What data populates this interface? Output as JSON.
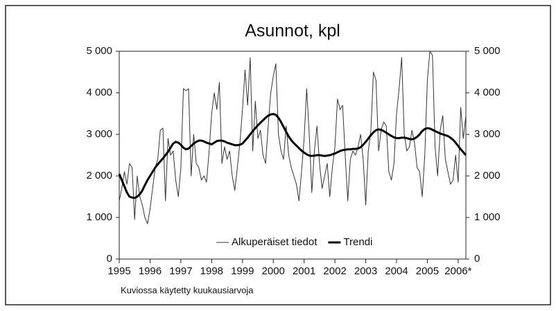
{
  "chart_data": {
    "type": "line",
    "title": "Asunnot, kpl",
    "footnote": "Kuviossa käytetty kuukausiarvoja",
    "x": [
      1995,
      1995.083,
      1995.167,
      1995.25,
      1995.333,
      1995.417,
      1995.5,
      1995.583,
      1995.667,
      1995.75,
      1995.833,
      1995.917,
      1996,
      1996.083,
      1996.167,
      1996.25,
      1996.333,
      1996.417,
      1996.5,
      1996.583,
      1996.667,
      1996.75,
      1996.833,
      1996.917,
      1997,
      1997.083,
      1997.167,
      1997.25,
      1997.333,
      1997.417,
      1997.5,
      1997.583,
      1997.667,
      1997.75,
      1997.833,
      1997.917,
      1998,
      1998.083,
      1998.167,
      1998.25,
      1998.333,
      1998.417,
      1998.5,
      1998.583,
      1998.667,
      1998.75,
      1998.833,
      1998.917,
      1999,
      1999.083,
      1999.167,
      1999.25,
      1999.333,
      1999.417,
      1999.5,
      1999.583,
      1999.667,
      1999.75,
      1999.833,
      1999.917,
      2000,
      2000.083,
      2000.167,
      2000.25,
      2000.333,
      2000.417,
      2000.5,
      2000.583,
      2000.667,
      2000.75,
      2000.833,
      2000.917,
      2001,
      2001.083,
      2001.167,
      2001.25,
      2001.333,
      2001.417,
      2001.5,
      2001.583,
      2001.667,
      2001.75,
      2001.833,
      2001.917,
      2002,
      2002.083,
      2002.167,
      2002.25,
      2002.333,
      2002.417,
      2002.5,
      2002.583,
      2002.667,
      2002.75,
      2002.833,
      2002.917,
      2003,
      2003.083,
      2003.167,
      2003.25,
      2003.333,
      2003.417,
      2003.5,
      2003.583,
      2003.667,
      2003.75,
      2003.833,
      2003.917,
      2004,
      2004.083,
      2004.167,
      2004.25,
      2004.333,
      2004.417,
      2004.5,
      2004.583,
      2004.667,
      2004.75,
      2004.833,
      2004.917,
      2005,
      2005.083,
      2005.167,
      2005.25,
      2005.333,
      2005.417,
      2005.5,
      2005.583,
      2005.667,
      2005.75,
      2005.833,
      2005.917,
      2006,
      2006.083,
      2006.167,
      2006.25
    ],
    "series": [
      {
        "name": "Alkuperäiset tiedot",
        "color": "#333333",
        "width": 1,
        "values": [
          1400,
          1700,
          2100,
          1800,
          2300,
          2200,
          950,
          2000,
          1500,
          1300,
          1000,
          850,
          1200,
          1700,
          2200,
          2400,
          3100,
          3150,
          1400,
          2900,
          2500,
          2600,
          1900,
          1500,
          2200,
          4100,
          4050,
          4100,
          2000,
          3000,
          2300,
          2200,
          1900,
          2000,
          1850,
          2600,
          3500,
          4000,
          3600,
          4250,
          2300,
          2700,
          2400,
          2600,
          2000,
          1650,
          2200,
          2800,
          3600,
          4550,
          3700,
          4850,
          2600,
          3800,
          2900,
          3100,
          2500,
          2300,
          3200,
          4000,
          4400,
          4700,
          3000,
          2600,
          2400,
          3200,
          2500,
          2200,
          2000,
          1800,
          1400,
          2100,
          2900,
          4100,
          3000,
          1600,
          2600,
          3200,
          2300,
          1700,
          2000,
          2300,
          1500,
          2200,
          2700,
          3850,
          3600,
          3700,
          2500,
          1400,
          2400,
          2600,
          2500,
          2700,
          3000,
          2400,
          1300,
          2600,
          3100,
          4500,
          4300,
          2600,
          3100,
          3300,
          3200,
          2100,
          1900,
          2300,
          3500,
          4100,
          4850,
          3000,
          2600,
          2700,
          3100,
          2800,
          2200,
          2100,
          1500,
          2500,
          4300,
          5000,
          4900,
          2700,
          2000,
          3100,
          3450,
          2400,
          2100,
          1800,
          1900,
          2500,
          1850,
          3650,
          2900,
          3450
        ]
      },
      {
        "name": "Trendi",
        "color": "#000000",
        "width": 3,
        "values": [
          2050,
          1900,
          1750,
          1600,
          1500,
          1480,
          1470,
          1500,
          1560,
          1650,
          1780,
          1900,
          2000,
          2100,
          2200,
          2280,
          2350,
          2420,
          2500,
          2580,
          2680,
          2780,
          2820,
          2800,
          2750,
          2680,
          2640,
          2660,
          2720,
          2780,
          2820,
          2850,
          2850,
          2830,
          2800,
          2780,
          2760,
          2800,
          2840,
          2850,
          2850,
          2830,
          2800,
          2780,
          2760,
          2740,
          2740,
          2750,
          2780,
          2850,
          2920,
          3000,
          3080,
          3150,
          3220,
          3280,
          3340,
          3400,
          3450,
          3480,
          3490,
          3470,
          3400,
          3300,
          3180,
          3060,
          2950,
          2860,
          2790,
          2730,
          2670,
          2610,
          2560,
          2520,
          2490,
          2480,
          2490,
          2500,
          2500,
          2490,
          2480,
          2490,
          2500,
          2520,
          2540,
          2570,
          2600,
          2620,
          2630,
          2640,
          2640,
          2650,
          2650,
          2660,
          2690,
          2750,
          2820,
          2900,
          2980,
          3050,
          3100,
          3120,
          3110,
          3080,
          3040,
          3000,
          2960,
          2930,
          2910,
          2910,
          2920,
          2920,
          2910,
          2890,
          2880,
          2900,
          2940,
          3000,
          3080,
          3130,
          3150,
          3140,
          3110,
          3080,
          3050,
          3020,
          3000,
          2980,
          2960,
          2920,
          2870,
          2800,
          2720,
          2640,
          2570,
          2500
        ]
      }
    ],
    "xlim": [
      1995,
      2006.25
    ],
    "xticks": [
      1995,
      1996,
      1997,
      1998,
      1999,
      2000,
      2001,
      2002,
      2003,
      2004,
      2005,
      {
        "value": 2006,
        "label": "2006*"
      }
    ],
    "ylim": [
      0,
      5000
    ],
    "yticks": [
      0,
      {
        "value": 1000,
        "label": "1 000"
      },
      {
        "value": 2000,
        "label": "2 000"
      },
      {
        "value": 3000,
        "label": "3 000"
      },
      {
        "value": 4000,
        "label": "4 000"
      },
      {
        "value": 5000,
        "label": "5 000"
      }
    ],
    "y2lim": [
      0,
      5000
    ],
    "y2ticks": [
      0,
      {
        "value": 1000,
        "label": "1 000"
      },
      {
        "value": 2000,
        "label": "2 000"
      },
      {
        "value": 3000,
        "label": "3 000"
      },
      {
        "value": 4000,
        "label": "4 000"
      },
      {
        "value": 5000,
        "label": "5 000"
      }
    ],
    "legend": "bottom"
  }
}
